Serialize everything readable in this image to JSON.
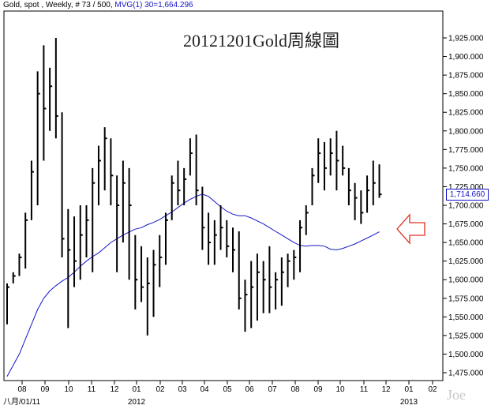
{
  "header": {
    "symbol": "Gold, spot , Weekly, # 73 / 500,",
    "indicator": "MVG(1) 30=1,664.296"
  },
  "title": "20121201Gold周線圖",
  "last_price_label": "1,714.660",
  "watermark": "Joe",
  "colors": {
    "bars": "#000000",
    "ma": "#1414c8",
    "arrow": "#e0301e"
  },
  "chart_data": {
    "type": "ohlc",
    "title": "20121201Gold周線圖",
    "ylim": [
      1465,
      1945
    ],
    "y_ticks": [
      1475,
      1500,
      1525,
      1550,
      1575,
      1600,
      1625,
      1650,
      1675,
      1700,
      1725,
      1750,
      1775,
      1800,
      1825,
      1850,
      1875,
      1900,
      1925
    ],
    "y_tick_labels": [
      "1,475.000",
      "1,500.000",
      "1,525.000",
      "1,550.000",
      "1,575.000",
      "1,600.000",
      "1,625.000",
      "1,650.000",
      "1,675.000",
      "1,700.000",
      "1,725.000",
      "1,750.000",
      "1,775.000",
      "1,800.000",
      "1,825.000",
      "1,850.000",
      "1,875.000",
      "1,900.000",
      "1,925.000"
    ],
    "x_month_labels": [
      "08",
      "09",
      "10",
      "11",
      "12",
      "01",
      "02",
      "03",
      "04",
      "05",
      "06",
      "07",
      "08",
      "09",
      "10",
      "11",
      "12",
      "01",
      "02"
    ],
    "x_year_labels": [
      {
        "label": "八月/01/11",
        "month_index": 0
      },
      {
        "label": "2012",
        "month_index": 5
      },
      {
        "label": "2013",
        "month_index": 17
      }
    ],
    "bars": [
      [
        1595,
        1540,
        1590
      ],
      [
        1610,
        1595,
        1605
      ],
      [
        1635,
        1605,
        1630
      ],
      [
        1690,
        1615,
        1680
      ],
      [
        1760,
        1680,
        1745
      ],
      [
        1880,
        1700,
        1850
      ],
      [
        1915,
        1760,
        1830
      ],
      [
        1885,
        1800,
        1860
      ],
      [
        1925,
        1790,
        1820
      ],
      [
        1825,
        1630,
        1655
      ],
      [
        1695,
        1535,
        1640
      ],
      [
        1685,
        1590,
        1625
      ],
      [
        1700,
        1600,
        1660
      ],
      [
        1700,
        1630,
        1680
      ],
      [
        1750,
        1610,
        1730
      ],
      [
        1780,
        1700,
        1760
      ],
      [
        1805,
        1720,
        1790
      ],
      [
        1790,
        1700,
        1740
      ],
      [
        1740,
        1610,
        1700
      ],
      [
        1760,
        1650,
        1730
      ],
      [
        1750,
        1600,
        1700
      ],
      [
        1660,
        1560,
        1600
      ],
      [
        1645,
        1570,
        1590
      ],
      [
        1630,
        1525,
        1595
      ],
      [
        1640,
        1550,
        1620
      ],
      [
        1660,
        1590,
        1630
      ],
      [
        1690,
        1620,
        1680
      ],
      [
        1740,
        1680,
        1730
      ],
      [
        1760,
        1700,
        1720
      ],
      [
        1750,
        1700,
        1735
      ],
      [
        1790,
        1740,
        1770
      ],
      [
        1795,
        1700,
        1720
      ],
      [
        1725,
        1640,
        1670
      ],
      [
        1690,
        1620,
        1650
      ],
      [
        1680,
        1620,
        1660
      ],
      [
        1700,
        1640,
        1670
      ],
      [
        1680,
        1630,
        1645
      ],
      [
        1670,
        1610,
        1640
      ],
      [
        1665,
        1560,
        1575
      ],
      [
        1600,
        1530,
        1580
      ],
      [
        1625,
        1535,
        1590
      ],
      [
        1635,
        1545,
        1610
      ],
      [
        1625,
        1555,
        1600
      ],
      [
        1645,
        1555,
        1590
      ],
      [
        1610,
        1560,
        1600
      ],
      [
        1630,
        1565,
        1610
      ],
      [
        1635,
        1590,
        1625
      ],
      [
        1640,
        1600,
        1630
      ],
      [
        1680,
        1610,
        1670
      ],
      [
        1700,
        1660,
        1690
      ],
      [
        1750,
        1700,
        1740
      ],
      [
        1790,
        1730,
        1770
      ],
      [
        1785,
        1720,
        1750
      ],
      [
        1790,
        1740,
        1770
      ],
      [
        1800,
        1720,
        1760
      ],
      [
        1780,
        1740,
        1750
      ],
      [
        1750,
        1700,
        1720
      ],
      [
        1730,
        1680,
        1710
      ],
      [
        1720,
        1675,
        1690
      ],
      [
        1740,
        1690,
        1720
      ],
      [
        1760,
        1700,
        1730
      ],
      [
        1755,
        1710,
        1714.66
      ]
    ],
    "ma_series_name": "MVG(1) 30",
    "ma": [
      1470,
      1485,
      1500,
      1520,
      1540,
      1560,
      1575,
      1585,
      1592,
      1598,
      1603,
      1610,
      1618,
      1625,
      1631,
      1636,
      1643,
      1650,
      1655,
      1660,
      1664,
      1668,
      1670,
      1674,
      1677,
      1681,
      1686,
      1691,
      1697,
      1703,
      1708,
      1712,
      1715,
      1712,
      1705,
      1698,
      1692,
      1688,
      1686,
      1686,
      1683,
      1679,
      1675,
      1670,
      1665,
      1660,
      1655,
      1650,
      1646,
      1645,
      1646,
      1646,
      1645,
      1641,
      1640,
      1642,
      1645,
      1648,
      1652,
      1656,
      1660,
      1664.296
    ],
    "last_price": 1714.66,
    "last_ma": 1664.296,
    "annotation": "arrow pointing to moving average"
  }
}
